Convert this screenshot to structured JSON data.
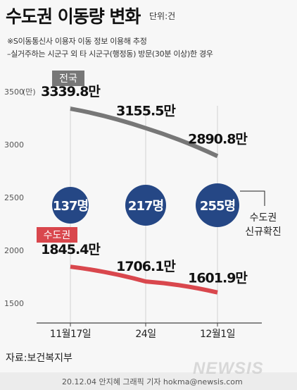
{
  "header": {
    "title": "수도권 이동량 변화",
    "unit": "단위:건",
    "notes": [
      "※S이동통신사 이용자 이동 정보 이용해 추정",
      "–실거주하는 시군구 외 타 시군구(행정동) 방문(30분 이상)한 경우"
    ]
  },
  "chart_data": {
    "type": "line",
    "categories": [
      "11월17일",
      "24일",
      "12월1일"
    ],
    "y_unit_label": "(만)",
    "yticks": [
      "1500",
      "2000",
      "2500",
      "3000",
      "3500"
    ],
    "ylim": [
      1500,
      3500
    ],
    "series": [
      {
        "name": "전국",
        "values": [
          3339.8,
          3155.5,
          2890.8
        ],
        "labels": [
          "3339.8만",
          "3155.5만",
          "2890.8만"
        ],
        "color": "#777777"
      },
      {
        "name": "수도권",
        "values": [
          1845.4,
          1706.1,
          1601.9
        ],
        "labels": [
          "1845.4만",
          "1706.1만",
          "1601.9만"
        ],
        "color": "#d9474d"
      }
    ],
    "confirmed_cases": {
      "labels": [
        "137명",
        "217명",
        "255명"
      ],
      "legend": [
        "수도권",
        "신규확진"
      ],
      "color": "#254785"
    },
    "grid": false
  },
  "footer": {
    "source": "자료:보건복지부",
    "credit": "20.12.04 안지혜 그래픽 기자 hokma@newsis.com",
    "logo": "NEWSIS"
  }
}
